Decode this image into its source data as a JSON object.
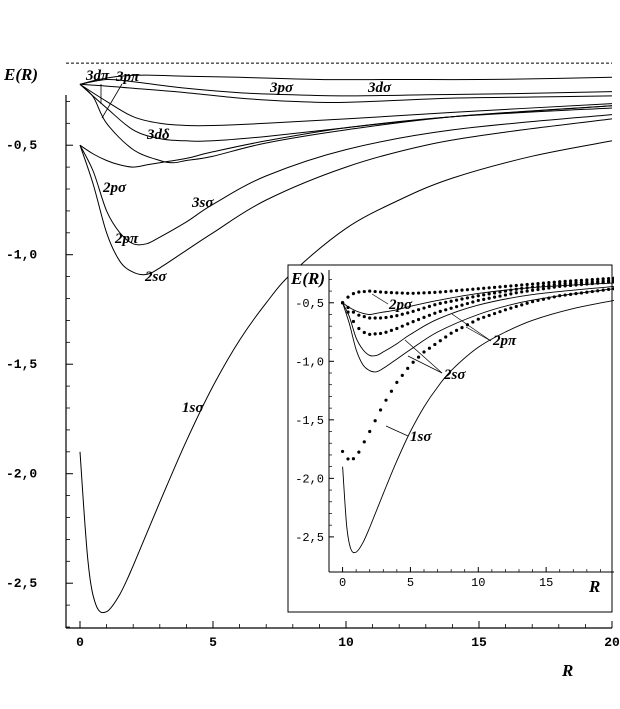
{
  "chart_data": [
    {
      "type": "line",
      "ylabel": "E(R)",
      "xlabel": "R",
      "xlim": [
        0,
        20
      ],
      "ylim": [
        -2.7,
        -0.12
      ],
      "x_ticks": [
        "0",
        "5",
        "10",
        "15",
        "20"
      ],
      "y_ticks": [
        "-0,5",
        "-1,0",
        "-1,5",
        "-2,0",
        "-2,5"
      ],
      "y_tick_values": [
        -0.5,
        -1.0,
        -1.5,
        -2.0,
        -2.5
      ],
      "x_tick_values": [
        0,
        5,
        10,
        15,
        20
      ],
      "reference_line": {
        "y": -0.125,
        "style": "dashed"
      },
      "series": [
        {
          "name": "1sσ",
          "points": [
            [
              0,
              -1.9
            ],
            [
              0.3,
              -2.4
            ],
            [
              0.6,
              -2.6
            ],
            [
              1,
              -2.63
            ],
            [
              1.5,
              -2.55
            ],
            [
              2,
              -2.42
            ],
            [
              3,
              -2.13
            ],
            [
              4,
              -1.85
            ],
            [
              5,
              -1.6
            ],
            [
              6,
              -1.39
            ],
            [
              7,
              -1.22
            ],
            [
              8,
              -1.08
            ],
            [
              10,
              -0.88
            ],
            [
              12,
              -0.75
            ],
            [
              14,
              -0.65
            ],
            [
              17,
              -0.55
            ],
            [
              20,
              -0.48
            ]
          ]
        },
        {
          "name": "2sσ",
          "points": [
            [
              0,
              -0.5
            ],
            [
              0.5,
              -0.68
            ],
            [
              1,
              -0.9
            ],
            [
              1.5,
              -1.03
            ],
            [
              2,
              -1.08
            ],
            [
              2.5,
              -1.09
            ],
            [
              3,
              -1.06
            ],
            [
              4,
              -0.98
            ],
            [
              5,
              -0.9
            ],
            [
              7,
              -0.75
            ],
            [
              10,
              -0.6
            ],
            [
              13,
              -0.5
            ],
            [
              16,
              -0.44
            ],
            [
              20,
              -0.38
            ]
          ]
        },
        {
          "name": "2pπ",
          "points": [
            [
              0,
              -0.5
            ],
            [
              0.5,
              -0.62
            ],
            [
              1,
              -0.8
            ],
            [
              1.5,
              -0.9
            ],
            [
              2,
              -0.95
            ],
            [
              2.5,
              -0.95
            ],
            [
              3,
              -0.92
            ],
            [
              4,
              -0.85
            ],
            [
              5,
              -0.77
            ],
            [
              7,
              -0.64
            ],
            [
              10,
              -0.52
            ],
            [
              14,
              -0.43
            ],
            [
              20,
              -0.36
            ]
          ]
        },
        {
          "name": "2pσ",
          "points": [
            [
              0,
              -0.5
            ],
            [
              0.5,
              -0.54
            ],
            [
              1,
              -0.57
            ],
            [
              1.5,
              -0.59
            ],
            [
              2,
              -0.6
            ],
            [
              2.5,
              -0.59
            ],
            [
              3,
              -0.58
            ],
            [
              4,
              -0.56
            ],
            [
              5,
              -0.53
            ],
            [
              7,
              -0.48
            ],
            [
              10,
              -0.42
            ],
            [
              14,
              -0.37
            ],
            [
              20,
              -0.33
            ]
          ]
        },
        {
          "name": "3sσ",
          "points": [
            [
              0,
              -0.222
            ],
            [
              0.5,
              -0.28
            ],
            [
              1,
              -0.4
            ],
            [
              2,
              -0.52
            ],
            [
              3,
              -0.57
            ],
            [
              3.5,
              -0.58
            ],
            [
              4,
              -0.57
            ],
            [
              5,
              -0.55
            ],
            [
              7,
              -0.49
            ],
            [
              10,
              -0.43
            ],
            [
              14,
              -0.37
            ],
            [
              20,
              -0.32
            ]
          ]
        },
        {
          "name": "3dδ",
          "points": [
            [
              0,
              -0.222
            ],
            [
              1,
              -0.33
            ],
            [
              2,
              -0.43
            ],
            [
              3,
              -0.47
            ],
            [
              4,
              -0.48
            ],
            [
              5,
              -0.48
            ],
            [
              7,
              -0.46
            ],
            [
              10,
              -0.42
            ],
            [
              14,
              -0.37
            ],
            [
              20,
              -0.32
            ]
          ]
        },
        {
          "name": "3pπ",
          "points": [
            [
              0,
              -0.222
            ],
            [
              1,
              -0.3
            ],
            [
              2,
              -0.37
            ],
            [
              3,
              -0.4
            ],
            [
              4,
              -0.41
            ],
            [
              5,
              -0.41
            ],
            [
              7,
              -0.4
            ],
            [
              10,
              -0.38
            ],
            [
              14,
              -0.35
            ],
            [
              20,
              -0.31
            ]
          ]
        },
        {
          "name": "3pσ",
          "points": [
            [
              0,
              -0.222
            ],
            [
              1,
              -0.23
            ],
            [
              2,
              -0.24
            ],
            [
              4,
              -0.26
            ],
            [
              6,
              -0.285
            ],
            [
              8,
              -0.3
            ],
            [
              9.5,
              -0.305
            ],
            [
              11,
              -0.3
            ],
            [
              14,
              -0.285
            ],
            [
              17,
              -0.28
            ],
            [
              20,
              -0.275
            ]
          ]
        },
        {
          "name": "3dπ",
          "points": [
            [
              0,
              -0.222
            ],
            [
              1,
              -0.2
            ],
            [
              2,
              -0.21
            ],
            [
              4,
              -0.24
            ],
            [
              6,
              -0.26
            ],
            [
              8,
              -0.27
            ],
            [
              10,
              -0.275
            ],
            [
              13,
              -0.27
            ],
            [
              16,
              -0.265
            ],
            [
              20,
              -0.255
            ]
          ]
        },
        {
          "name": "3dσ",
          "points": [
            [
              0,
              -0.222
            ],
            [
              0.7,
              -0.2
            ],
            [
              1.5,
              -0.185
            ],
            [
              2.5,
              -0.18
            ],
            [
              4,
              -0.185
            ],
            [
              6,
              -0.19
            ],
            [
              9,
              -0.2
            ],
            [
              12,
              -0.2
            ],
            [
              15,
              -0.2
            ],
            [
              18,
              -0.195
            ],
            [
              20,
              -0.19
            ]
          ]
        }
      ]
    },
    {
      "type": "line",
      "ylabel": "E(R)",
      "xlabel": "R",
      "xlim": [
        -1,
        20
      ],
      "ylim": [
        -2.8,
        -0.22
      ],
      "x_ticks": [
        "0",
        "5",
        "10",
        "15"
      ],
      "x_tick_values": [
        0,
        5,
        10,
        15
      ],
      "y_ticks": [
        "-0,5",
        "-1,0",
        "-1,5",
        "-2,0",
        "-2,5"
      ],
      "y_tick_values": [
        -0.5,
        -1.0,
        -1.5,
        -2.0,
        -2.5
      ],
      "curve_labels": [
        "2pσ",
        "2pπ",
        "2sσ",
        "1sσ"
      ],
      "solid_series": [
        {
          "name": "1sσ",
          "points": [
            [
              0,
              -1.9
            ],
            [
              0.3,
              -2.4
            ],
            [
              0.6,
              -2.6
            ],
            [
              1,
              -2.63
            ],
            [
              1.5,
              -2.55
            ],
            [
              2,
              -2.42
            ],
            [
              3,
              -2.13
            ],
            [
              4,
              -1.85
            ],
            [
              5,
              -1.6
            ],
            [
              6,
              -1.39
            ],
            [
              7,
              -1.22
            ],
            [
              8,
              -1.08
            ],
            [
              10,
              -0.88
            ],
            [
              12,
              -0.75
            ],
            [
              14,
              -0.65
            ],
            [
              17,
              -0.55
            ],
            [
              20,
              -0.48
            ]
          ]
        },
        {
          "name": "2sσ",
          "points": [
            [
              0,
              -0.5
            ],
            [
              0.5,
              -0.68
            ],
            [
              1,
              -0.9
            ],
            [
              1.5,
              -1.03
            ],
            [
              2,
              -1.08
            ],
            [
              2.5,
              -1.09
            ],
            [
              3,
              -1.06
            ],
            [
              4,
              -0.98
            ],
            [
              5,
              -0.9
            ],
            [
              7,
              -0.75
            ],
            [
              10,
              -0.6
            ],
            [
              13,
              -0.5
            ],
            [
              16,
              -0.44
            ],
            [
              20,
              -0.38
            ]
          ]
        },
        {
          "name": "2pπ",
          "points": [
            [
              0,
              -0.5
            ],
            [
              0.5,
              -0.62
            ],
            [
              1,
              -0.8
            ],
            [
              1.5,
              -0.9
            ],
            [
              2,
              -0.95
            ],
            [
              2.5,
              -0.95
            ],
            [
              3,
              -0.92
            ],
            [
              4,
              -0.85
            ],
            [
              5,
              -0.77
            ],
            [
              7,
              -0.64
            ],
            [
              10,
              -0.52
            ],
            [
              14,
              -0.43
            ],
            [
              20,
              -0.36
            ]
          ]
        },
        {
          "name": "2pσ",
          "points": [
            [
              0,
              -0.5
            ],
            [
              0.5,
              -0.54
            ],
            [
              1,
              -0.57
            ],
            [
              1.5,
              -0.59
            ],
            [
              2,
              -0.6
            ],
            [
              2.5,
              -0.59
            ],
            [
              3,
              -0.58
            ],
            [
              4,
              -0.56
            ],
            [
              5,
              -0.53
            ],
            [
              7,
              -0.48
            ],
            [
              10,
              -0.42
            ],
            [
              14,
              -0.37
            ],
            [
              20,
              -0.33
            ]
          ]
        }
      ],
      "dotted_series": [
        {
          "name": "1sσ",
          "points": [
            [
              0,
              -1.77
            ],
            [
              0.5,
              -1.85
            ],
            [
              1,
              -1.82
            ],
            [
              2,
              -1.6
            ],
            [
              3,
              -1.37
            ],
            [
              4,
              -1.18
            ],
            [
              5,
              -1.03
            ],
            [
              6,
              -0.92
            ],
            [
              8,
              -0.76
            ],
            [
              10,
              -0.64
            ],
            [
              12,
              -0.56
            ],
            [
              14,
              -0.49
            ],
            [
              16,
              -0.44
            ],
            [
              18,
              -0.41
            ],
            [
              20,
              -0.38
            ]
          ]
        },
        {
          "name": "2sσ",
          "points": [
            [
              0,
              -0.5
            ],
            [
              0.5,
              -0.6
            ],
            [
              1,
              -0.7
            ],
            [
              1.5,
              -0.75
            ],
            [
              2,
              -0.77
            ],
            [
              3,
              -0.76
            ],
            [
              4,
              -0.72
            ],
            [
              5,
              -0.67
            ],
            [
              7,
              -0.58
            ],
            [
              10,
              -0.48
            ],
            [
              13,
              -0.41
            ],
            [
              16,
              -0.36
            ],
            [
              20,
              -0.32
            ]
          ]
        },
        {
          "name": "2pπ",
          "points": [
            [
              0,
              -0.5
            ],
            [
              0.5,
              -0.55
            ],
            [
              1,
              -0.6
            ],
            [
              2,
              -0.63
            ],
            [
              3,
              -0.63
            ],
            [
              4,
              -0.61
            ],
            [
              5,
              -0.58
            ],
            [
              7,
              -0.51
            ],
            [
              10,
              -0.44
            ],
            [
              13,
              -0.38
            ],
            [
              16,
              -0.34
            ],
            [
              20,
              -0.31
            ]
          ]
        },
        {
          "name": "2pσ",
          "points": [
            [
              0,
              -0.5
            ],
            [
              0.5,
              -0.44
            ],
            [
              1,
              -0.41
            ],
            [
              2,
              -0.4
            ],
            [
              3,
              -0.41
            ],
            [
              5,
              -0.42
            ],
            [
              7,
              -0.41
            ],
            [
              10,
              -0.38
            ],
            [
              13,
              -0.35
            ],
            [
              16,
              -0.32
            ],
            [
              20,
              -0.29
            ]
          ]
        }
      ]
    }
  ]
}
